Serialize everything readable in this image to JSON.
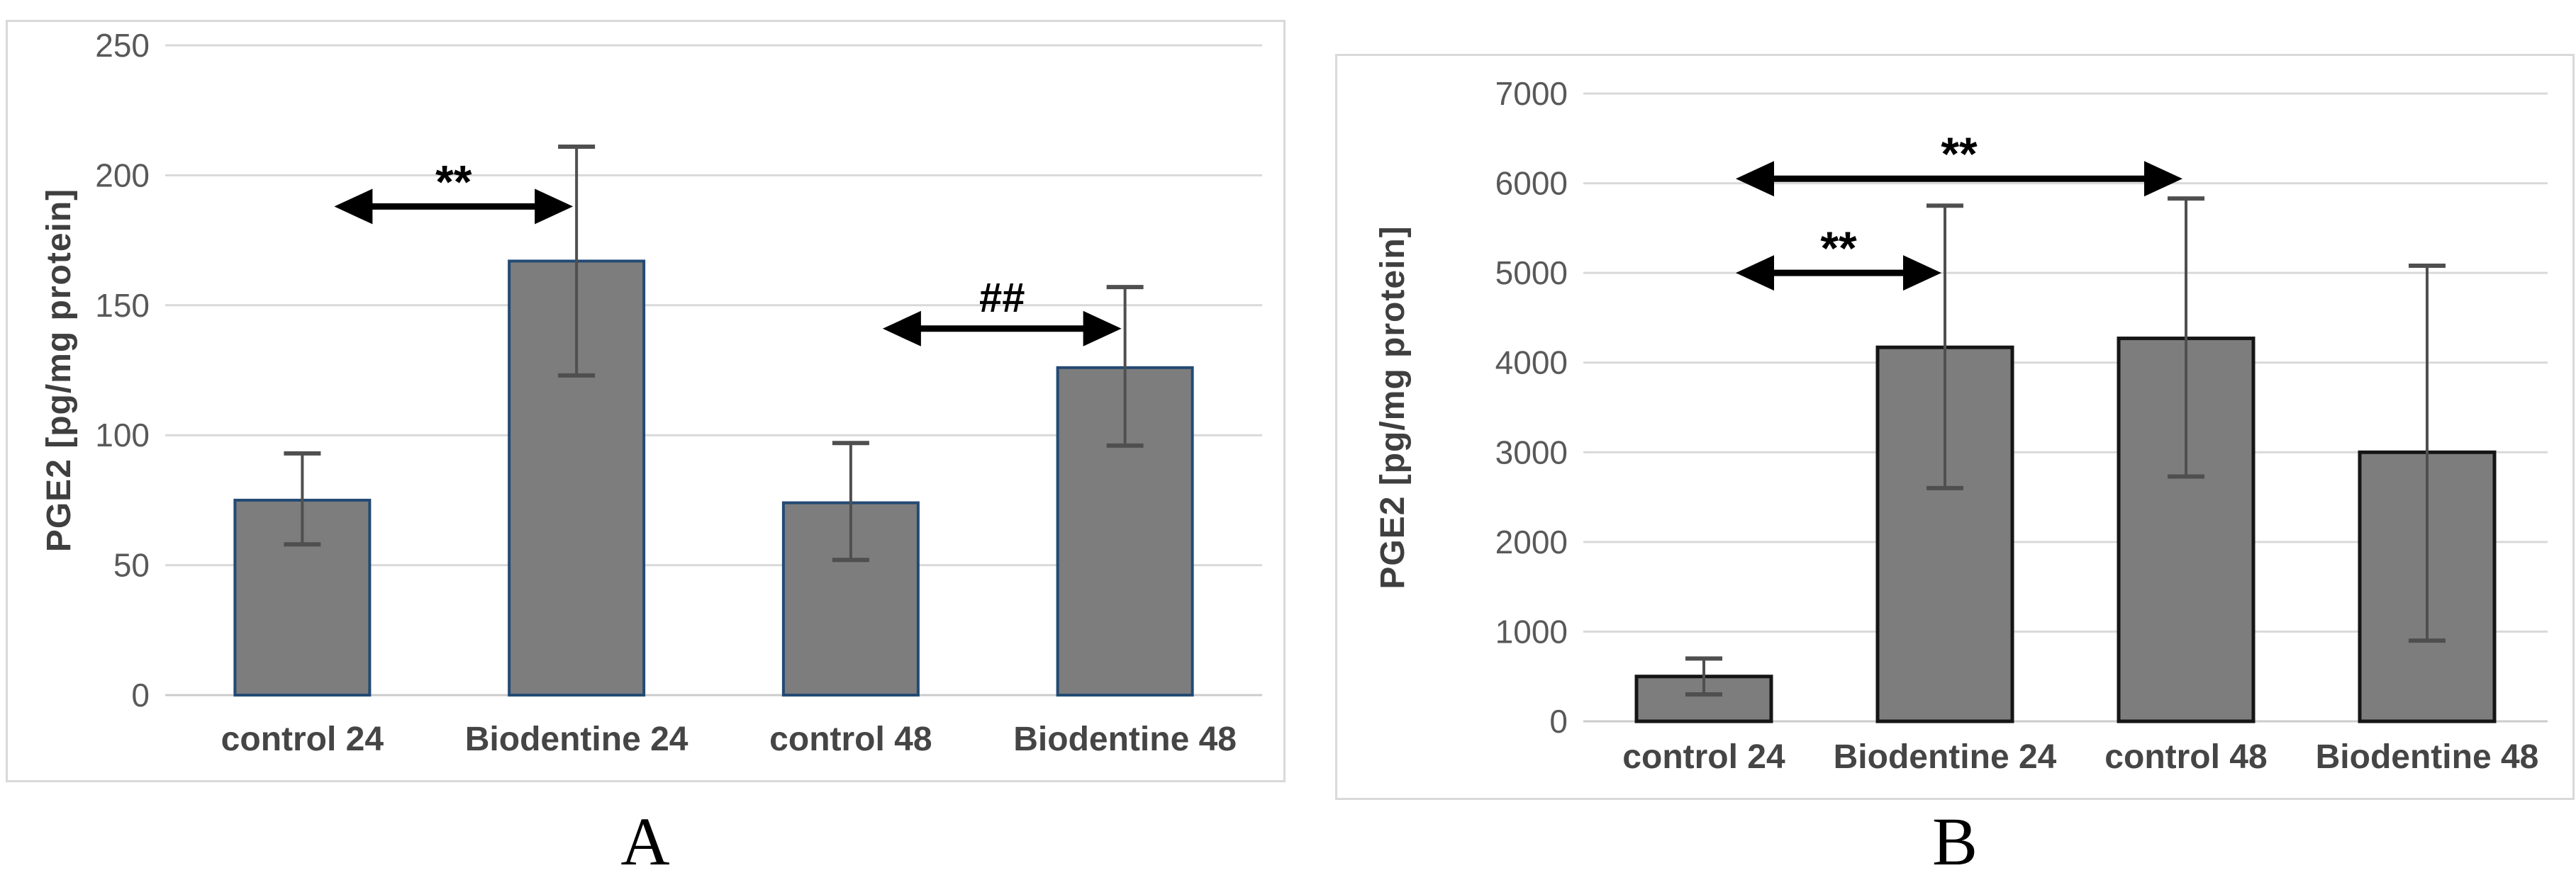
{
  "figure": {
    "description_labels": [
      "A",
      "B"
    ]
  },
  "chart_data": [
    {
      "type": "bar",
      "panel_label": "A",
      "title": "",
      "xlabel": "",
      "ylabel": "PGE2 [pg/mg protein]",
      "categories": [
        "control 24",
        "Biodentine 24",
        "control 48",
        "Biodentine 48"
      ],
      "values": [
        75,
        167,
        74,
        126
      ],
      "error_low": [
        58,
        123,
        52,
        96
      ],
      "error_high": [
        93,
        211,
        97,
        157
      ],
      "ylim": [
        0,
        250
      ],
      "yticks": [
        0,
        50,
        100,
        150,
        200,
        250
      ],
      "grid": true,
      "legend": "none",
      "bar_fill": "#7d7d7d",
      "bar_border": "#234a73",
      "error_color": "#4f4f4f",
      "grid_color": "#d9d9d9",
      "annotations": [
        {
          "symbol": "**",
          "from": 0,
          "to": 1,
          "y": 188
        },
        {
          "symbol": "##",
          "from": 2,
          "to": 3,
          "y": 141
        }
      ]
    },
    {
      "type": "bar",
      "panel_label": "B",
      "title": "",
      "xlabel": "",
      "ylabel": "PGE2 [pg/mg protein]",
      "categories": [
        "control 24",
        "Biodentine 24",
        "control 48",
        "Biodentine 48"
      ],
      "values": [
        500,
        4170,
        4270,
        3000
      ],
      "error_low": [
        300,
        2600,
        2730,
        900
      ],
      "error_high": [
        700,
        5750,
        5830,
        5080
      ],
      "ylim": [
        0,
        7000
      ],
      "yticks": [
        0,
        1000,
        2000,
        3000,
        4000,
        5000,
        6000,
        7000
      ],
      "grid": true,
      "legend": "none",
      "bar_fill": "#7d7d7d",
      "bar_border": "#151515",
      "error_color": "#4f4f4f",
      "grid_color": "#d9d9d9",
      "annotations": [
        {
          "symbol": "**",
          "from": 0,
          "to": 1,
          "y": 5000
        },
        {
          "symbol": "**",
          "from": 0,
          "to": 2,
          "y": 6050
        }
      ]
    }
  ]
}
